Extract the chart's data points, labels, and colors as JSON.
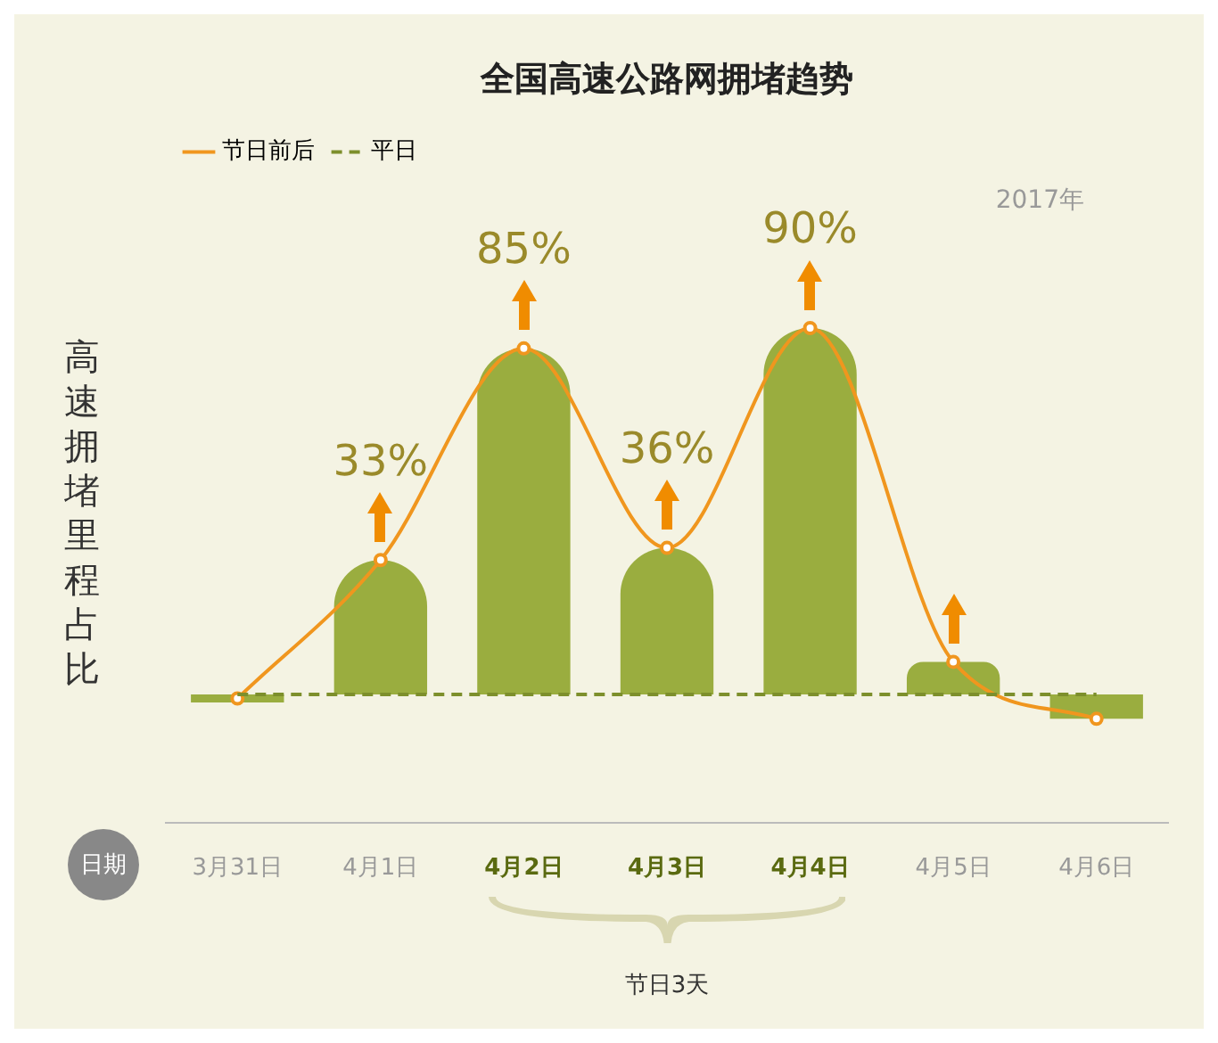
{
  "chart_data": {
    "type": "bar",
    "title": "全国高速公路网拥堵趋势",
    "xlabel": "日期",
    "ylabel": "高速拥堵里程占比",
    "legend": "top left",
    "categories": [
      "3月31日",
      "4月1日",
      "4月2日",
      "4月3日",
      "4月4日",
      "4月5日",
      "4月6日"
    ],
    "annotations": [
      "2017年",
      "节日3天"
    ],
    "ref_lines": [
      {
        "axis": "y",
        "value": 0,
        "label": "平日",
        "color": "#7d8f2c",
        "line_style": "dashed"
      }
    ],
    "series": [
      {
        "color": "#9aad3f",
        "values": [
          -2,
          33,
          85,
          36,
          90,
          8,
          -6
        ],
        "value_labels": [
          null,
          "33%",
          "85%",
          "36%",
          "90%",
          null,
          null
        ]
      },
      {
        "type": "line",
        "name": "节日前后",
        "color": "#f0961e",
        "marker": "circle",
        "line_style": "solid",
        "values": [
          -1,
          33,
          85,
          36,
          90,
          8,
          -6
        ]
      }
    ]
  }
}
